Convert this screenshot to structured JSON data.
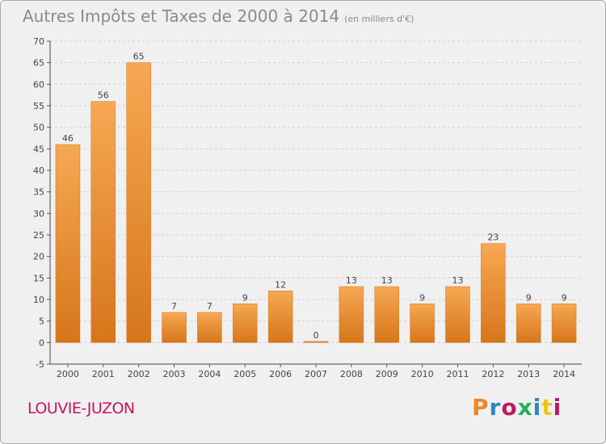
{
  "chart_data": {
    "type": "bar",
    "title": "Autres Impôts et Taxes de 2000 à 2014",
    "subtitle": "(en milliers d'€)",
    "categories": [
      "2000",
      "2001",
      "2002",
      "2003",
      "2004",
      "2005",
      "2006",
      "2007",
      "2008",
      "2009",
      "2010",
      "2011",
      "2012",
      "2013",
      "2014"
    ],
    "values": [
      46,
      56,
      65,
      7,
      7,
      9,
      12,
      0,
      13,
      13,
      9,
      13,
      23,
      9,
      9
    ],
    "ylim": [
      -5,
      70
    ],
    "yticks": [
      -5,
      0,
      5,
      10,
      15,
      20,
      25,
      30,
      35,
      40,
      45,
      50,
      55,
      60,
      65,
      70
    ],
    "grid": true,
    "bar_color": "#e8892b",
    "xlabel": "",
    "ylabel": ""
  },
  "footer": {
    "commune": "LOUVIE-JUZON",
    "logo": "Proxiti",
    "logo_colors": [
      "#e8892b",
      "#2e86c1",
      "#c2185b",
      "#27ae60",
      "#2e86c1",
      "#f1c40f",
      "#c2185b"
    ]
  }
}
